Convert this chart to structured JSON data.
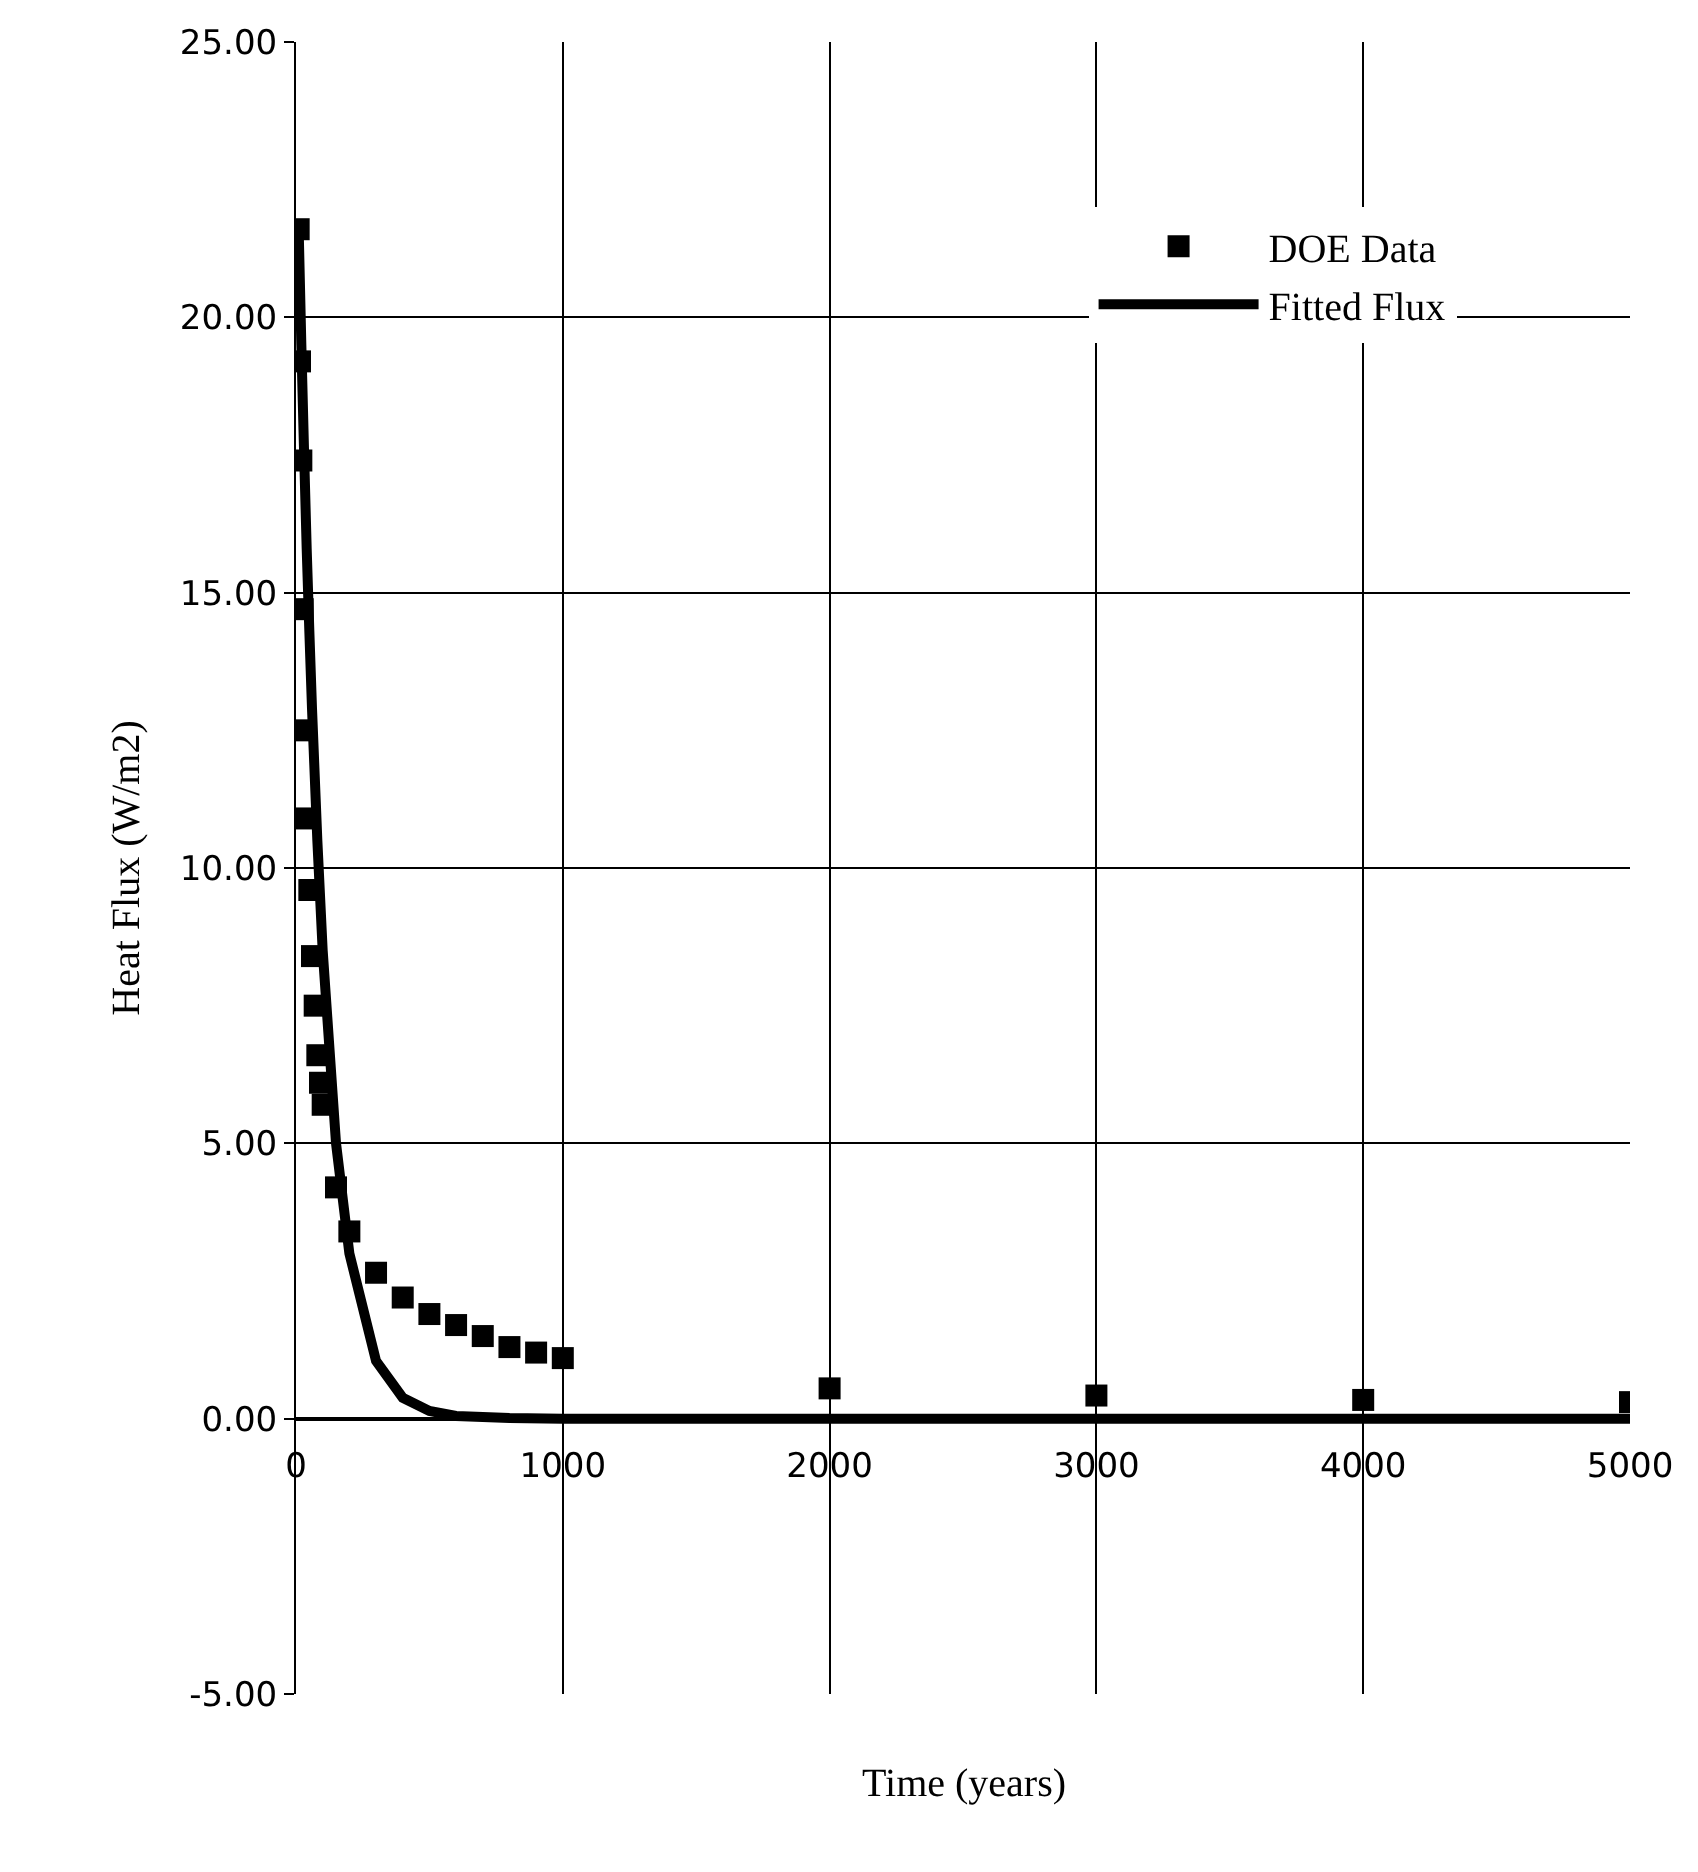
{
  "chart_data": {
    "type": "scatter",
    "xlabel": "Time (years)",
    "ylabel": "Heat Flux (W/m2)",
    "xlim": [
      0,
      5000
    ],
    "xticks": [
      0,
      1000,
      2000,
      3000,
      4000,
      5000
    ],
    "ylim": [
      -5,
      25
    ],
    "yticks": [
      {
        "value": -5,
        "label": "-5.00"
      },
      {
        "value": 0,
        "label": "0.00"
      },
      {
        "value": 5,
        "label": "5.00"
      },
      {
        "value": 10,
        "label": "10.00"
      },
      {
        "value": 15,
        "label": "15.00"
      },
      {
        "value": 20,
        "label": "20.00"
      },
      {
        "value": 25,
        "label": "25.00"
      }
    ],
    "grid": true,
    "legend": "top right",
    "series": [
      {
        "name": "DOE Data",
        "marker": "square",
        "color": "#000000",
        "x": [
          10,
          15,
          20,
          25,
          30,
          40,
          50,
          60,
          70,
          80,
          90,
          100,
          150,
          200,
          300,
          400,
          500,
          600,
          700,
          800,
          900,
          1000,
          2000,
          3000,
          4000,
          5000
        ],
        "values": [
          21.6,
          19.2,
          17.4,
          14.7,
          12.5,
          10.9,
          9.6,
          8.4,
          7.5,
          6.6,
          6.1,
          5.7,
          4.2,
          3.4,
          2.65,
          2.2,
          1.9,
          1.7,
          1.5,
          1.3,
          1.2,
          1.1,
          0.55,
          0.42,
          0.34,
          0.3
        ]
      },
      {
        "name": "Fitted Flux",
        "type": "line",
        "marker": "none",
        "line_style": "solid",
        "color": "#000000",
        "x": [
          10,
          20,
          30,
          40,
          50,
          60,
          80,
          100,
          150,
          200,
          300,
          400,
          500,
          600,
          800,
          1000,
          2000,
          3000,
          4000,
          5000
        ],
        "values": [
          21.6,
          19.5,
          17.6,
          15.8,
          14.3,
          12.9,
          10.5,
          8.5,
          5.0,
          3.0,
          1.05,
          0.38,
          0.14,
          0.05,
          0.01,
          0,
          0,
          0,
          0,
          0
        ]
      }
    ]
  }
}
